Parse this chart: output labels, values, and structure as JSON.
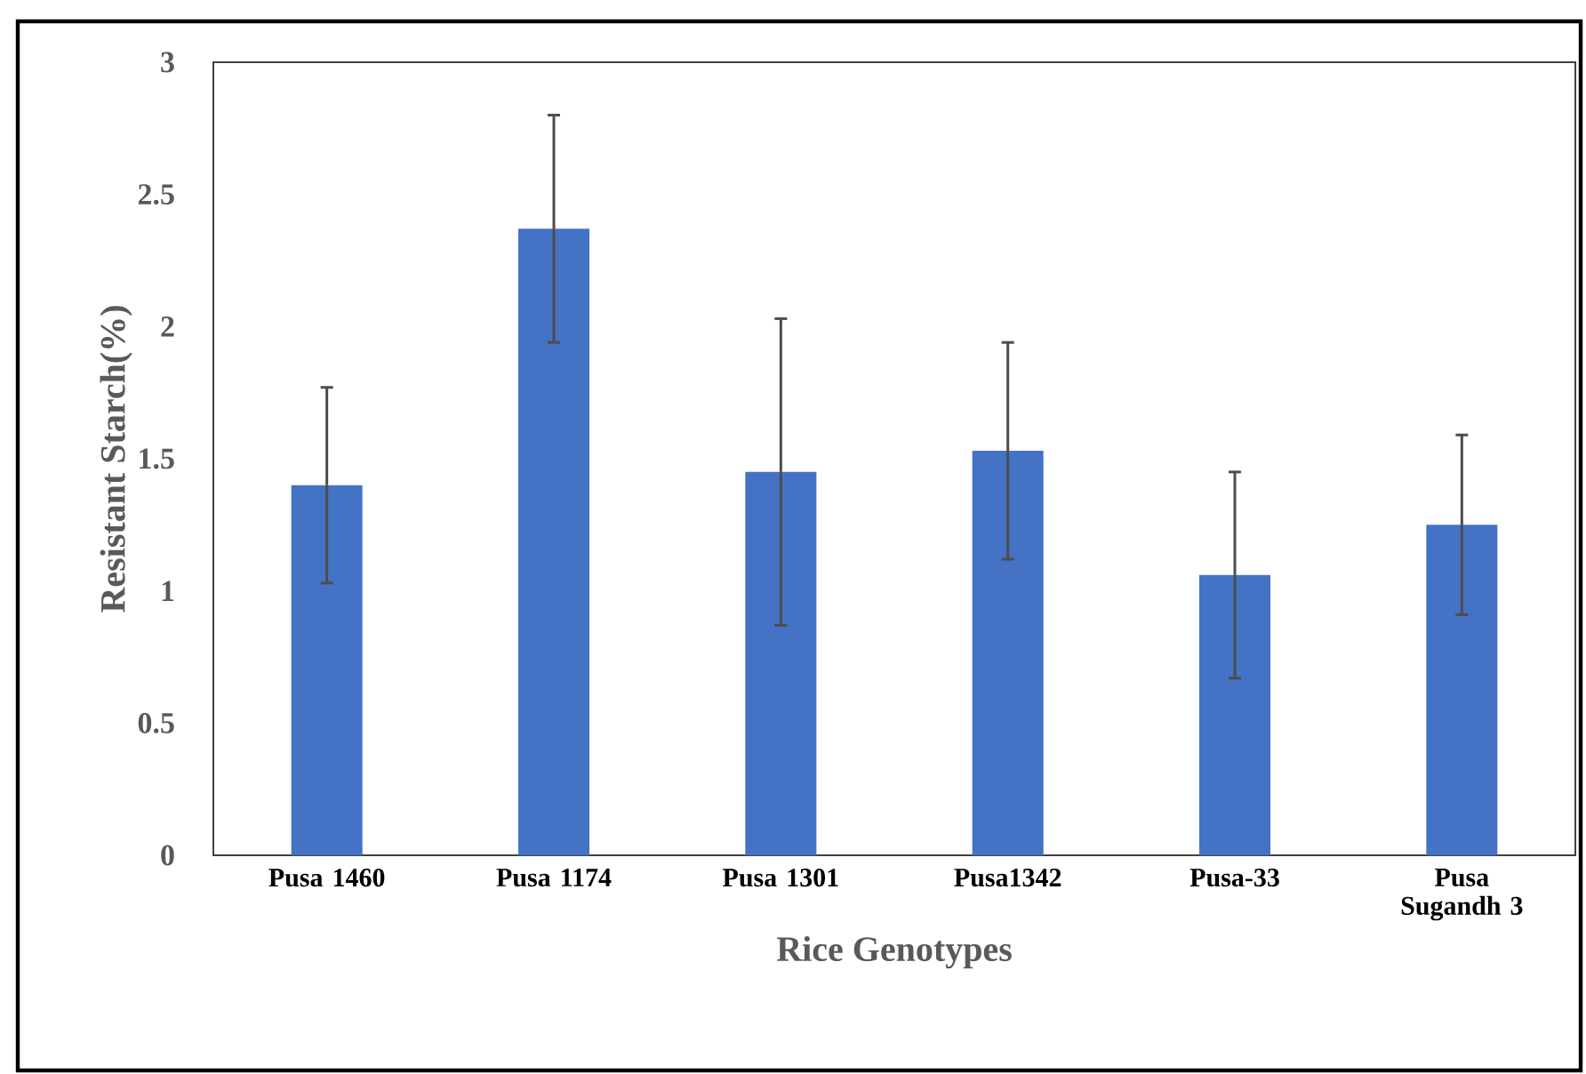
{
  "chart_data": {
    "type": "bar",
    "xlabel": "Rice Genotypes",
    "ylabel": "Resistant Starch(%)",
    "categories": [
      "Pusa 1460",
      "Pusa 1174",
      "Pusa 1301",
      "Pusa1342",
      "Pusa-33",
      "Pusa Sugandh 3"
    ],
    "values": [
      1.4,
      2.37,
      1.45,
      1.53,
      1.06,
      1.25
    ],
    "errors": [
      0.37,
      0.43,
      0.58,
      0.41,
      0.39,
      0.34
    ],
    "color": "#4472c4",
    "ylim": [
      0,
      3
    ],
    "yticks": [
      0,
      0.5,
      1,
      1.5,
      2,
      2.5,
      3
    ],
    "grid": false
  }
}
